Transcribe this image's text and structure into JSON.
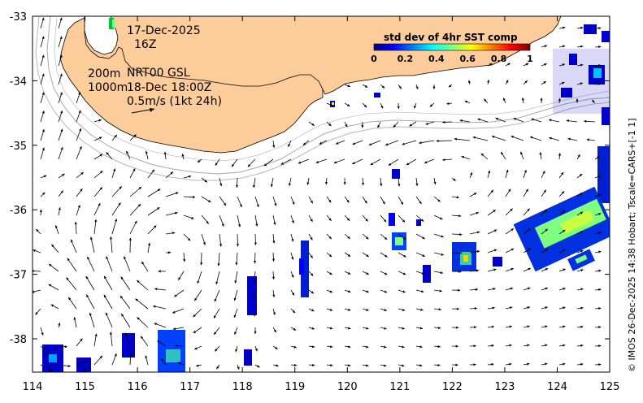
{
  "map": {
    "date": "17-Dec-2025",
    "hour": "16Z",
    "contours_label": "200m",
    "contours_label2": "1000m",
    "product": "NRT00 GSL",
    "valid_time": "18-Dec 18:00Z",
    "arrow_scale": "0.5m/s (1kt 24h)",
    "footer": "© IMOS 26-Dec-2025 14:38 Hobart; Tscale=CARS+[-1 1]",
    "colorbar": {
      "title": "std dev of 4hr SST comp",
      "ticks": [
        "0",
        "0.2",
        "0.4",
        "0.6",
        "0.8",
        "1"
      ],
      "stops": [
        "#00007f",
        "#0000ff",
        "#007fff",
        "#00ffff",
        "#7fff7f",
        "#ffff00",
        "#ff7f00",
        "#ff0000",
        "#7f0000"
      ]
    },
    "lat_ticks": [
      "-33",
      "-34",
      "-35",
      "-36",
      "-37",
      "-38"
    ],
    "lon_ticks": [
      "114",
      "115",
      "116",
      "117",
      "118",
      "119",
      "120",
      "121",
      "122",
      "123",
      "124",
      "125"
    ],
    "colors": {
      "land": "#fdcc9b",
      "arrow": "#000000",
      "isobath": "#a8a8a8"
    }
  }
}
